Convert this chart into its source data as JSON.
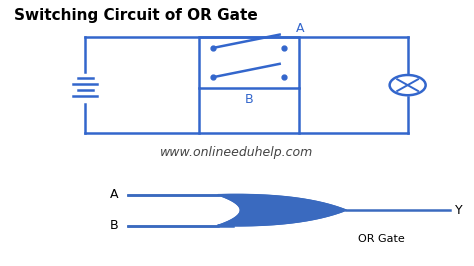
{
  "title": "Switching Circuit of OR Gate",
  "website": "www.onlineeduhelp.com",
  "circuit_color": "#3366cc",
  "bg_color": "#ffffff",
  "title_fontsize": 11,
  "website_fontsize": 9,
  "or_gate_color": "#3a6abf",
  "or_gate_label": "OR Gate",
  "label_A": "A",
  "label_B": "B",
  "label_Y": "Y"
}
